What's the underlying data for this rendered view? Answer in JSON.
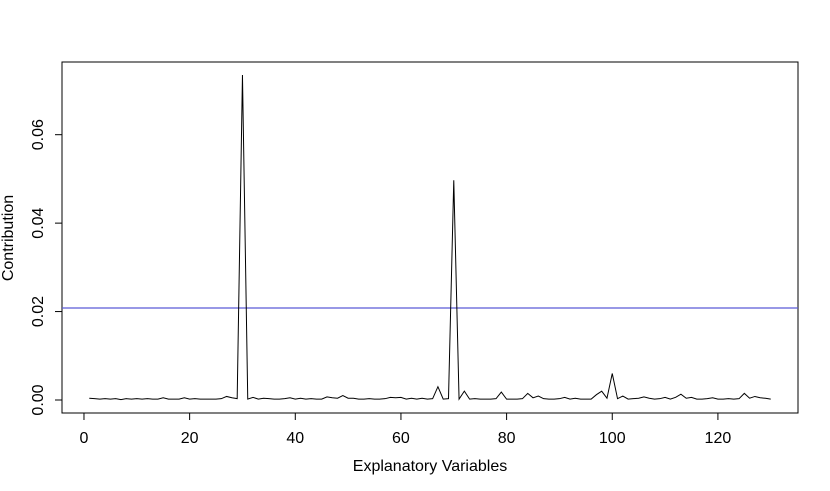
{
  "chart_data": {
    "type": "line",
    "x_label": "Explanatory Variables",
    "y_label": "Contribution",
    "x": [
      1,
      2,
      3,
      4,
      5,
      6,
      7,
      8,
      9,
      10,
      11,
      12,
      13,
      14,
      15,
      16,
      17,
      18,
      19,
      20,
      21,
      22,
      23,
      24,
      25,
      26,
      27,
      28,
      29,
      30,
      31,
      32,
      33,
      34,
      35,
      36,
      37,
      38,
      39,
      40,
      41,
      42,
      43,
      44,
      45,
      46,
      47,
      48,
      49,
      50,
      51,
      52,
      53,
      54,
      55,
      56,
      57,
      58,
      59,
      60,
      61,
      62,
      63,
      64,
      65,
      66,
      67,
      68,
      69,
      70,
      71,
      72,
      73,
      74,
      75,
      76,
      77,
      78,
      79,
      80,
      81,
      82,
      83,
      84,
      85,
      86,
      87,
      88,
      89,
      90,
      91,
      92,
      93,
      94,
      95,
      96,
      97,
      98,
      99,
      100,
      101,
      102,
      103,
      104,
      105,
      106,
      107,
      108,
      109,
      110,
      111,
      112,
      113,
      114,
      115,
      116,
      117,
      118,
      119,
      120,
      121,
      122,
      123,
      124,
      125,
      126,
      127,
      128,
      129,
      130
    ],
    "values": [
      0.0004,
      0.0003,
      0.0002,
      0.0003,
      0.0002,
      0.0003,
      0.0001,
      0.0003,
      0.0002,
      0.0003,
      0.0002,
      0.0003,
      0.0002,
      0.0002,
      0.0005,
      0.0002,
      0.0002,
      0.0002,
      0.0005,
      0.0002,
      0.0003,
      0.0002,
      0.0002,
      0.0002,
      0.0002,
      0.0003,
      0.0008,
      0.0005,
      0.0003,
      0.0735,
      0.0002,
      0.0006,
      0.0002,
      0.0004,
      0.0003,
      0.0002,
      0.0002,
      0.0003,
      0.0005,
      0.0002,
      0.0004,
      0.0002,
      0.0003,
      0.0002,
      0.0002,
      0.0007,
      0.0005,
      0.0004,
      0.001,
      0.0004,
      0.0004,
      0.0002,
      0.0002,
      0.0003,
      0.0002,
      0.0002,
      0.0003,
      0.0006,
      0.0005,
      0.0006,
      0.0002,
      0.0004,
      0.0002,
      0.0004,
      0.0002,
      0.0003,
      0.003,
      0.0002,
      0.0003,
      0.0497,
      0.0002,
      0.002,
      0.0002,
      0.0003,
      0.0002,
      0.0002,
      0.0002,
      0.0003,
      0.0018,
      0.0002,
      0.0002,
      0.0002,
      0.0003,
      0.0015,
      0.0005,
      0.0009,
      0.0003,
      0.0002,
      0.0002,
      0.0003,
      0.0006,
      0.0002,
      0.0004,
      0.0002,
      0.0002,
      0.0002,
      0.0012,
      0.002,
      0.0004,
      0.006,
      0.0003,
      0.0009,
      0.0002,
      0.0003,
      0.0004,
      0.0007,
      0.0004,
      0.0002,
      0.0003,
      0.0006,
      0.0002,
      0.0006,
      0.0013,
      0.0004,
      0.0006,
      0.0002,
      0.0002,
      0.0003,
      0.0005,
      0.0002,
      0.0002,
      0.0003,
      0.0002,
      0.0003,
      0.0015,
      0.0004,
      0.0008,
      0.0005,
      0.0004,
      0.0002
    ],
    "color": "#000000",
    "hline": {
      "value": 0.0208,
      "color": "#5b5bd6"
    },
    "xlim": [
      -4.16,
      135.16
    ],
    "xticks": [
      0,
      20,
      40,
      60,
      80,
      100,
      120
    ],
    "ylim": [
      -0.00294,
      0.07644
    ],
    "yticks": [
      {
        "value": 0,
        "label": "0.00"
      },
      {
        "value": 0.02,
        "label": "0.02"
      },
      {
        "value": 0.04,
        "label": "0.04"
      },
      {
        "value": 0.06,
        "label": "0.06"
      }
    ]
  }
}
